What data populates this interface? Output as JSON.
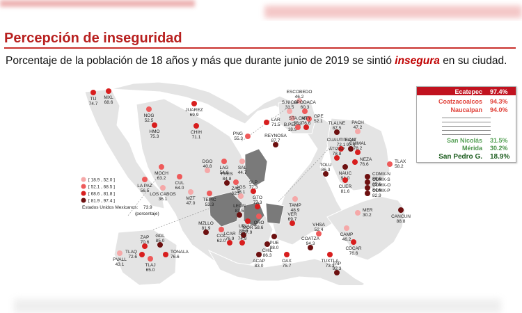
{
  "title": "Percepción de inseguridad",
  "subtitle_pre": "Porcentaje de la población de 18 años y más que durante junio de 2019 se sintió",
  "subtitle_kw": "insegura",
  "subtitle_post": "en su ciudad.",
  "colors": {
    "c1": "#f5a8a8",
    "c2": "#ee5a5a",
    "c3": "#d81e1e",
    "c4": "#6d1010",
    "highlight": "#c1121f",
    "green": "#2e7d32",
    "grey_state": "#7a7a7a",
    "land": "#e8e8e8"
  },
  "legend": {
    "ranges": [
      "[ 18.9 , 52.0 ]",
      "[ 52.1 , 68.5 ]",
      "[ 68.6 , 81.8 ]",
      "[ 81.9 , 97.4 ]"
    ],
    "national_label": "Estados Unidos Mexicanos:",
    "national_value": "73.9",
    "national_unit": "(porcentaje)"
  },
  "ranking": {
    "top": [
      {
        "name": "Ecatepec",
        "value": "97.4%"
      },
      {
        "name": "Coatzacoalcos",
        "value": "94.3%"
      },
      {
        "name": "Naucalpan",
        "value": "94.0%"
      }
    ],
    "bottom": [
      {
        "name": "San Nicolás",
        "value": "31.5%"
      },
      {
        "name": "Mérida",
        "value": "30.2%"
      },
      {
        "name": "San Pedro G.",
        "value": "18.9%"
      }
    ]
  },
  "cities": [
    {
      "name": "TIJ",
      "value": "74.7",
      "cls": 3
    },
    {
      "name": "MXL",
      "value": "68.6",
      "cls": 3
    },
    {
      "name": "NOG",
      "value": "52.5",
      "cls": 2
    },
    {
      "name": "HMO",
      "value": "75.3",
      "cls": 3
    },
    {
      "name": "JUAREZ",
      "value": "69.9",
      "cls": 3
    },
    {
      "name": "CHIH",
      "value": "71.1",
      "cls": 3
    },
    {
      "name": "PNG",
      "value": "55.3",
      "cls": 2
    },
    {
      "name": "LAR",
      "value": "71.5",
      "cls": 3
    },
    {
      "name": "REYNOSA",
      "value": "87.7",
      "cls": 4
    },
    {
      "name": "ESCOBEDO",
      "value": "46.2",
      "cls": 1
    },
    {
      "name": "S.NICO",
      "value": "31.5",
      "cls": 1
    },
    {
      "name": "APODACA",
      "value": "60.3",
      "cls": 2
    },
    {
      "name": "B.PEDR",
      "value": "18.9",
      "cls": 1
    },
    {
      "name": "GPE",
      "value": "52.1",
      "cls": 2
    },
    {
      "name": "STA.CAT",
      "value": "55.3",
      "cls": 2
    },
    {
      "name": "MTY",
      "value": "76.6",
      "cls": 3
    },
    {
      "name": "TLALNE",
      "value": "87.5",
      "cls": 4
    },
    {
      "name": "PACH",
      "value": "47.2",
      "cls": 1
    },
    {
      "name": "CUAUTITLAN",
      "value": "72.1",
      "cls": 3
    },
    {
      "name": "ECAT",
      "value": "97.4",
      "cls": 4
    },
    {
      "name": "CHIMAL",
      "value": "78.2",
      "cls": 3
    },
    {
      "name": "ATIZAP",
      "value": "78.8",
      "cls": 3
    },
    {
      "name": "NEZA",
      "value": "76.6",
      "cls": 3
    },
    {
      "name": "NAUC",
      "value": "94.0",
      "cls": 4
    },
    {
      "name": "TLAX",
      "value": "58.2",
      "cls": 2
    },
    {
      "name": "TOLU",
      "value": "86.3",
      "cls": 4
    },
    {
      "name": "CUER",
      "value": "81.6",
      "cls": 3
    },
    {
      "name": "CDMX-N",
      "value": "86.8",
      "cls": 4
    },
    {
      "name": "CDMX-S",
      "value": "85.6",
      "cls": 4
    },
    {
      "name": "CDMX-O",
      "value": "84.6",
      "cls": 4
    },
    {
      "name": "CDMX-P",
      "value": "82.9",
      "cls": 4
    },
    {
      "name": "MOCH",
      "value": "63.2",
      "cls": 2
    },
    {
      "name": "LA PAZ",
      "value": "56.5",
      "cls": 2
    },
    {
      "name": "LOS CABOS",
      "value": "36.1",
      "cls": 1
    },
    {
      "name": "CUL",
      "value": "64.0",
      "cls": 2
    },
    {
      "name": "DGO",
      "value": "40.8",
      "cls": 1
    },
    {
      "name": "LAG",
      "value": "54.8",
      "cls": 2
    },
    {
      "name": "SAL",
      "value": "44.7",
      "cls": 1
    },
    {
      "name": "MZT",
      "value": "47.0",
      "cls": 1
    },
    {
      "name": "TEPIC",
      "value": "53.3",
      "cls": 2
    },
    {
      "name": "FRES",
      "value": "84.8",
      "cls": 4
    },
    {
      "name": "ZAC",
      "value": "62.5",
      "cls": 2
    },
    {
      "name": "AGS",
      "value": "48.1",
      "cls": 1
    },
    {
      "name": "SLP",
      "value": "77.3",
      "cls": 3
    },
    {
      "name": "TAMP",
      "value": "48.9",
      "cls": 1
    },
    {
      "name": "GTO",
      "value": "77.3",
      "cls": 3
    },
    {
      "name": "LEON",
      "value": "83.5",
      "cls": 4
    },
    {
      "name": "QRO",
      "value": "58.6",
      "cls": 2
    },
    {
      "name": "MOR",
      "value": "77.9",
      "cls": 3
    },
    {
      "name": "URU",
      "value": "88.9",
      "cls": 4
    },
    {
      "name": "MZLLO",
      "value": "81.9",
      "cls": 4
    },
    {
      "name": "COL",
      "value": "62.0",
      "cls": 2
    },
    {
      "name": "LCAR",
      "value": "76.9",
      "cls": 3
    },
    {
      "name": "IXT",
      "value": "74.9",
      "cls": 3
    },
    {
      "name": "PUE",
      "value": "88.0",
      "cls": 4
    },
    {
      "name": "VER",
      "value": "69.7",
      "cls": 3
    },
    {
      "name": "CHIL",
      "value": "86.3",
      "cls": 4
    },
    {
      "name": "ACAP",
      "value": "83.0",
      "cls": 4
    },
    {
      "name": "OAX",
      "value": "75.7",
      "cls": 3
    },
    {
      "name": "VHSA",
      "value": "52.4",
      "cls": 2
    },
    {
      "name": "COATZA",
      "value": "94.3",
      "cls": 4
    },
    {
      "name": "TUXTLA",
      "value": "73.3",
      "cls": 3
    },
    {
      "name": "TAP",
      "value": "92.3",
      "cls": 4
    },
    {
      "name": "CDCAR",
      "value": "76.6",
      "cls": 3
    },
    {
      "name": "CAMP",
      "value": "46.2",
      "cls": 1
    },
    {
      "name": "MER",
      "value": "30.2",
      "cls": 1
    },
    {
      "name": "CANCUN",
      "value": "88.8",
      "cls": 4
    },
    {
      "name": "ZAP",
      "value": "70.6",
      "cls": 3
    },
    {
      "name": "GDL",
      "value": "85.0",
      "cls": 4
    },
    {
      "name": "TONALA",
      "value": "76.6",
      "cls": 3
    },
    {
      "name": "TLAQ",
      "value": "72.6",
      "cls": 3
    },
    {
      "name": "TLAJ",
      "value": "65.0",
      "cls": 2
    },
    {
      "name": "PVALL",
      "value": "43.1",
      "cls": 1
    }
  ]
}
